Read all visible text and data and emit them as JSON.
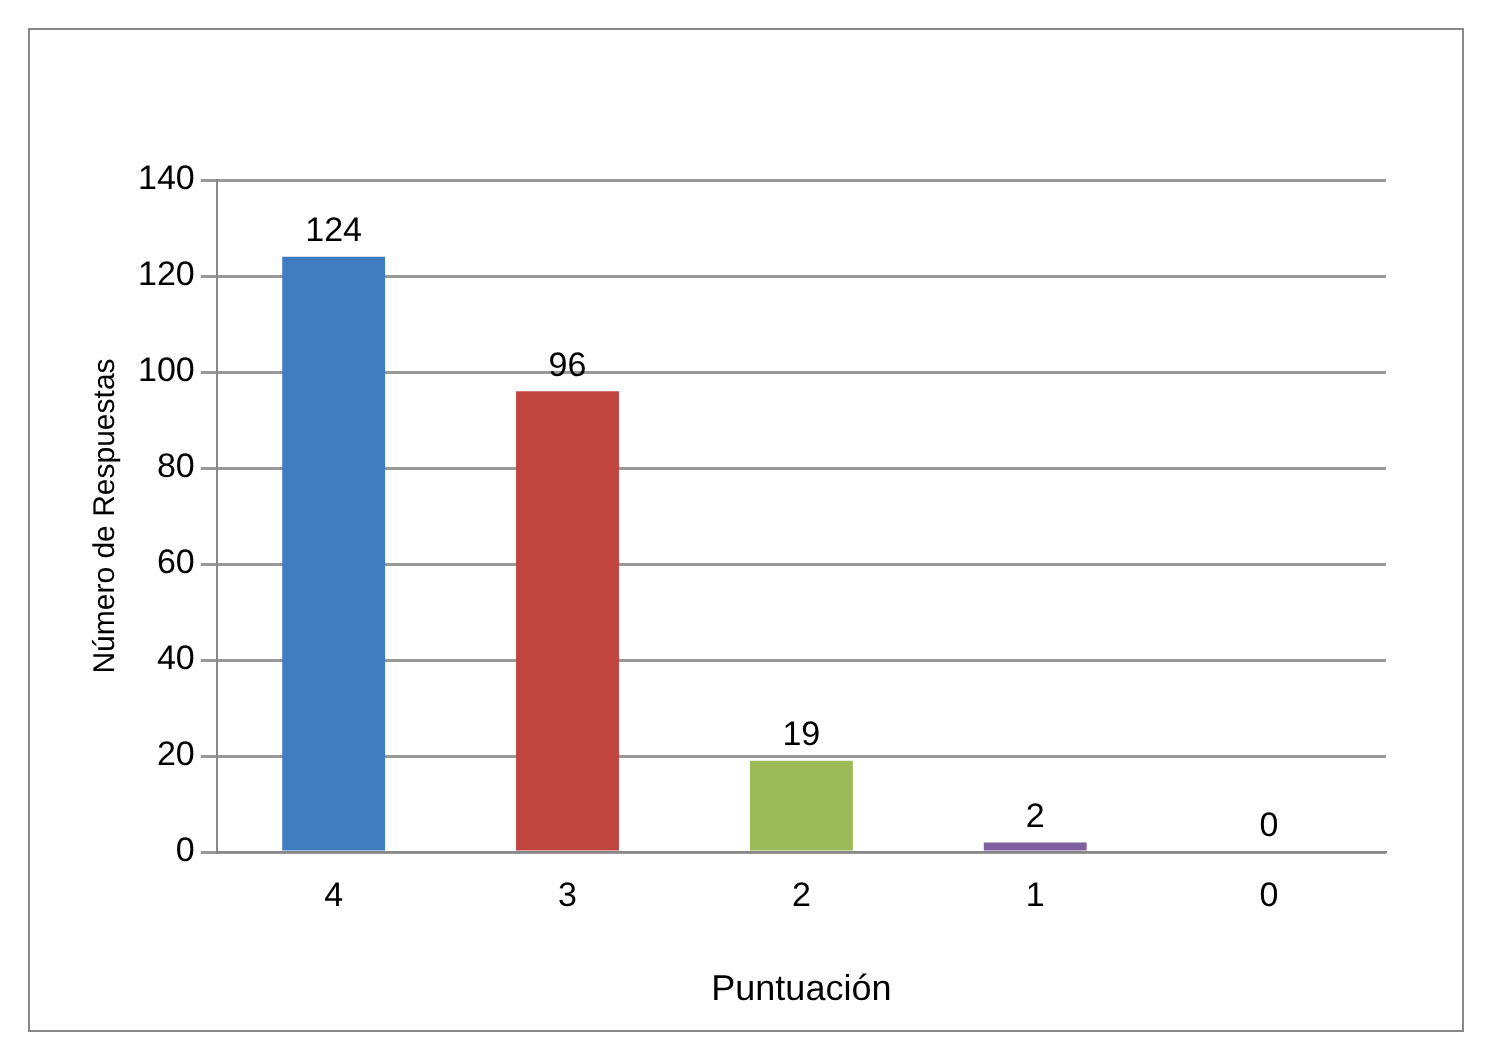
{
  "chart_data": {
    "type": "bar",
    "xlabel": "Puntuación",
    "ylabel": "Número de Respuestas",
    "categories": [
      "4",
      "3",
      "2",
      "1",
      "0"
    ],
    "values": [
      124,
      96,
      19,
      2,
      0
    ],
    "colors": [
      "#3f7cc0",
      "#c0453f",
      "#9bbb59",
      "#7f5fa0",
      "#2c9bb0"
    ],
    "ylim": [
      0,
      140
    ],
    "yticks": [
      0,
      20,
      40,
      60,
      80,
      100,
      120,
      140
    ],
    "grid": "y",
    "data_labels": true,
    "legend": false
  }
}
